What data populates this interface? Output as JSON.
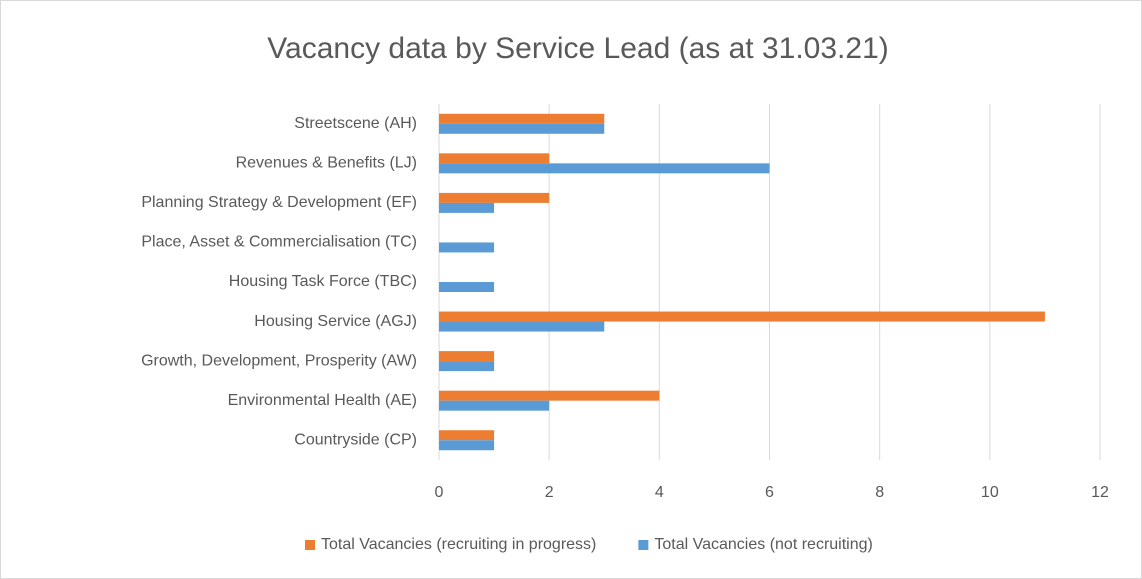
{
  "chart_data": {
    "type": "barh",
    "title": "Vacancy data by Service Lead (as at 31.03.21)",
    "categories": [
      "Streetscene (AH)",
      "Revenues & Benefits (LJ)",
      "Planning Strategy & Development (EF)",
      "Place, Asset & Commercialisation (TC)",
      "Housing Task Force (TBC)",
      "Housing Service (AGJ)",
      "Growth, Development, Prosperity (AW)",
      "Environmental Health (AE)",
      "Countryside (CP)"
    ],
    "series": [
      {
        "name": "Total Vacancies (recruiting in progress)",
        "color": "#ed7d31",
        "values": [
          3,
          2,
          2,
          0,
          0,
          11,
          1,
          4,
          1
        ]
      },
      {
        "name": "Total Vacancies (not recruiting)",
        "color": "#5b9bd5",
        "values": [
          3,
          6,
          1,
          1,
          1,
          3,
          1,
          2,
          1
        ]
      }
    ],
    "xlim": [
      0,
      12
    ],
    "xticks": [
      0,
      2,
      4,
      6,
      8,
      10,
      12
    ],
    "grid": true,
    "legend": "bottom"
  }
}
